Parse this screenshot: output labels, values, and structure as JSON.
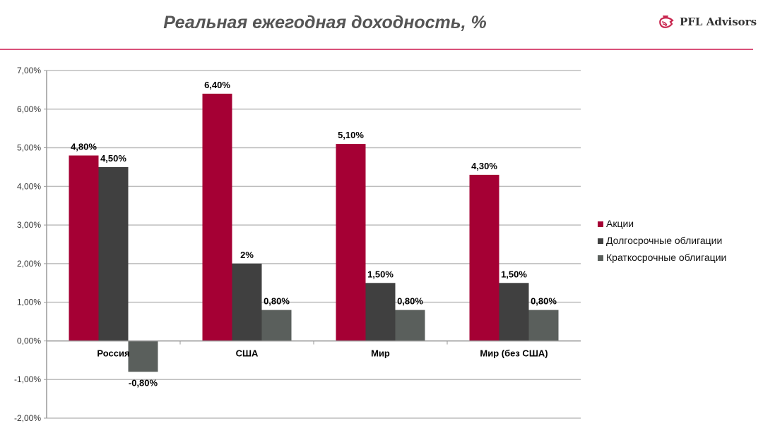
{
  "header": {
    "title": "Реальная ежегодная доходность, %",
    "logo_text": "PFL Advisors"
  },
  "chart_data": {
    "type": "bar",
    "title": "Реальная ежегодная доходность, %",
    "xlabel": "",
    "ylabel": "",
    "ylim": [
      -2,
      7
    ],
    "yticks": [
      "7,00%",
      "6,00%",
      "5,00%",
      "4,00%",
      "3,00%",
      "2,00%",
      "1,00%",
      "0,00%",
      "-1,00%",
      "-2,00%"
    ],
    "grid": true,
    "legend_position": "right",
    "categories": [
      "Россия",
      "США",
      "Мир",
      "Мир (без США)"
    ],
    "series": [
      {
        "name": "Акции",
        "color": "#a50034",
        "values": [
          4.8,
          6.4,
          5.1,
          4.3
        ],
        "labels": [
          "4,80%",
          "6,40%",
          "5,10%",
          "4,30%"
        ]
      },
      {
        "name": "Долгосрочные облигации",
        "color": "#404040",
        "values": [
          4.5,
          2.0,
          1.5,
          1.5
        ],
        "labels": [
          "4,50%",
          "2%",
          "1,50%",
          "1,50%"
        ]
      },
      {
        "name": "Краткосрочные облигации",
        "color": "#5a5f5c",
        "values": [
          -0.8,
          0.8,
          0.8,
          0.8
        ],
        "labels": [
          "-0,80%",
          "0,80%",
          "0,80%",
          "0,80%"
        ]
      }
    ]
  }
}
